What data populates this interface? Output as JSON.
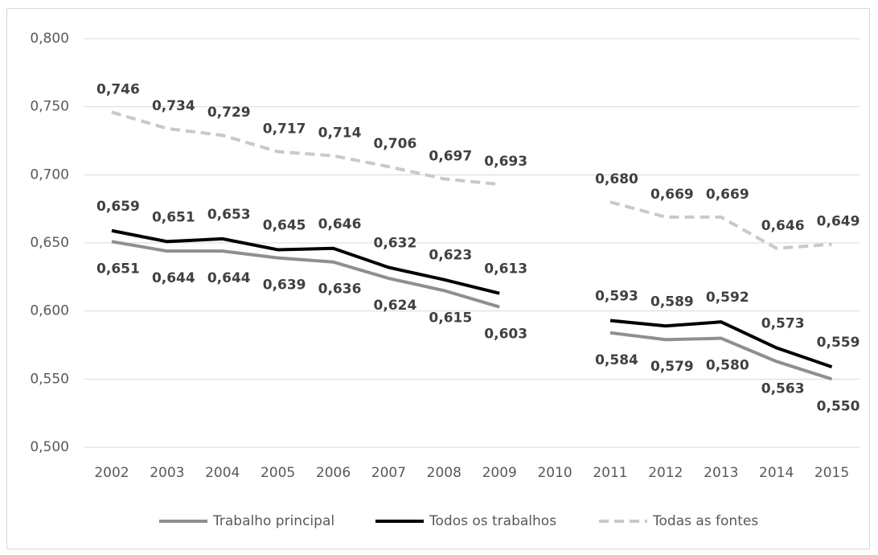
{
  "chart_data": {
    "type": "line",
    "categories": [
      "2002",
      "2003",
      "2004",
      "2005",
      "2006",
      "2007",
      "2008",
      "2009",
      "2010",
      "2011",
      "2012",
      "2013",
      "2014",
      "2015"
    ],
    "series": [
      {
        "name": "Trabalho principal",
        "color": "#8f8f8f",
        "dash": false,
        "values": [
          0.651,
          0.644,
          0.644,
          0.639,
          0.636,
          0.624,
          0.615,
          0.603,
          null,
          0.584,
          0.579,
          0.58,
          0.563,
          0.55
        ],
        "value_labels": [
          "0,651",
          "0,644",
          "0,644",
          "0,639",
          "0,636",
          "0,624",
          "0,615",
          "0,603",
          null,
          "0,584",
          "0,579",
          "0,580",
          "0,563",
          "0,550"
        ]
      },
      {
        "name": "Todos os trabalhos",
        "color": "#000000",
        "dash": false,
        "values": [
          0.659,
          0.651,
          0.653,
          0.645,
          0.646,
          0.632,
          0.623,
          0.613,
          null,
          0.593,
          0.589,
          0.592,
          0.573,
          0.559
        ],
        "value_labels": [
          "0,659",
          "0,651",
          "0,653",
          "0,645",
          "0,646",
          "0,632",
          "0,623",
          "0,613",
          null,
          "0,593",
          "0,589",
          "0,592",
          "0,573",
          "0,559"
        ]
      },
      {
        "name": "Todas as fontes",
        "color": "#c9c9c9",
        "dash": true,
        "values": [
          0.746,
          0.734,
          0.729,
          0.717,
          0.714,
          0.706,
          0.697,
          0.693,
          null,
          0.68,
          0.669,
          0.669,
          0.646,
          0.649
        ],
        "value_labels": [
          "0,746",
          "0,734",
          "0,729",
          "0,717",
          "0,714",
          "0,706",
          "0,697",
          "0,693",
          null,
          "0,680",
          "0,669",
          "0,669",
          "0,646",
          "0,649"
        ]
      }
    ],
    "ylim": [
      0.5,
      0.8
    ],
    "yticks": [
      {
        "value": 0.5,
        "label": "0,500"
      },
      {
        "value": 0.55,
        "label": "0,550"
      },
      {
        "value": 0.6,
        "label": "0,600"
      },
      {
        "value": 0.65,
        "label": "0,650"
      },
      {
        "value": 0.7,
        "label": "0,700"
      },
      {
        "value": 0.75,
        "label": "0,750"
      },
      {
        "value": 0.8,
        "label": "0,800"
      }
    ],
    "grid": true,
    "legend": "bottom"
  }
}
